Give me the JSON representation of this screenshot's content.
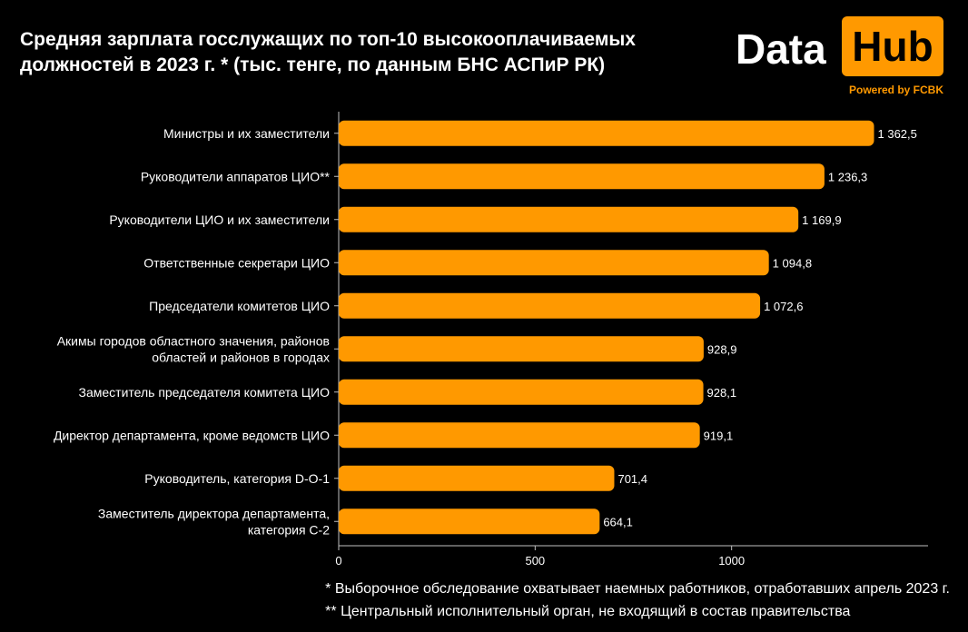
{
  "header": {
    "title": "Средняя зарплата госслужащих по топ-10 высокооплачиваемых должностей в 2023 г. * (тыс. тенге, по данным БНС АСПиР РК)"
  },
  "logo": {
    "data_word": "Data",
    "hub_word": "Hub",
    "powered": "Powered by FCBK"
  },
  "colors": {
    "bar": "#ff9900",
    "background": "#000000",
    "text": "#ffffff",
    "axis": "#bfbfbf"
  },
  "chart_data": {
    "type": "bar",
    "orientation": "horizontal",
    "categories": [
      "Министры и их заместители",
      "Руководители аппаратов ЦИО**",
      "Руководители ЦИО и их заместители",
      "Ответственные секретари ЦИО",
      "Председатели комитетов ЦИО",
      "Акимы городов областного значения, районов областей и районов в городах",
      "Заместитель председателя комитета ЦИО",
      "Директор департамента, кроме ведомств ЦИО",
      "Руководитель, категория D-O-1",
      "Заместитель директора департамента, категория С-2"
    ],
    "category_lines": [
      [
        "Министры и их заместители"
      ],
      [
        "Руководители аппаратов ЦИО**"
      ],
      [
        "Руководители ЦИО и их заместители"
      ],
      [
        "Ответственные секретари ЦИО"
      ],
      [
        "Председатели комитетов ЦИО"
      ],
      [
        "Акимы городов областного значения, районов",
        "областей и районов в городах"
      ],
      [
        "Заместитель председателя комитета ЦИО"
      ],
      [
        "Директор департамента, кроме ведомств ЦИО"
      ],
      [
        "Руководитель, категория D-O-1"
      ],
      [
        "Заместитель директора департамента,",
        "категория С-2"
      ]
    ],
    "values": [
      1362.5,
      1236.3,
      1169.9,
      1094.8,
      1072.6,
      928.9,
      928.1,
      919.1,
      701.4,
      664.1
    ],
    "value_labels": [
      "1 362,5",
      "1 236,3",
      "1 169,9",
      "1 094,8",
      "1 072,6",
      "928,9",
      "928,1",
      "919,1",
      "701,4",
      "664,1"
    ],
    "xlim": [
      0,
      1500
    ],
    "xticks": [
      0,
      500,
      1000
    ],
    "xtick_labels": [
      "0",
      "500",
      "1000"
    ],
    "grid": false,
    "legend": "none"
  },
  "footnotes": [
    "* Выборочное обследование охватывает наемных работников, отработавших апрель 2023 г.",
    "** Центральный исполнительный орган, не входящий в состав правительства"
  ]
}
